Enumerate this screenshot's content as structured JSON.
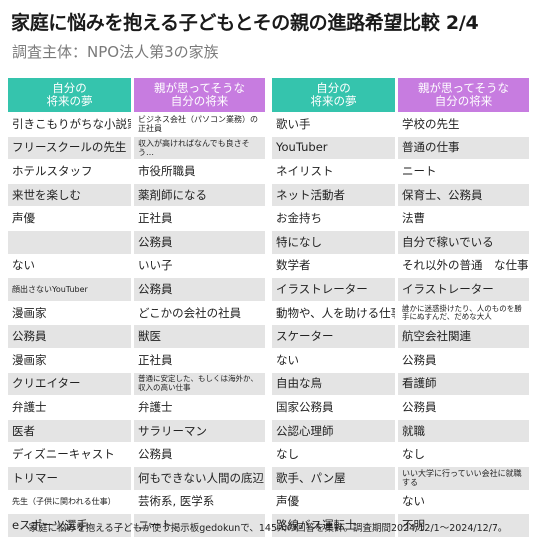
{
  "title": "家庭に悩みを抱える子どもとその親の進路希望比較 2/4",
  "subtitle": "調査主体：NPO法人第3の家族",
  "header": {
    "child_col": "自分の\n将来の夢",
    "parent_col": "親が思ってそうな\n自分の将来"
  },
  "left_rows": [
    [
      "引きこもりがちな小説家",
      "ビジネス会社（パソコン業務）の正社員"
    ],
    [
      "フリースクールの先生",
      "収入が高ければなんでも良さそう…"
    ],
    [
      "ホテルスタッフ",
      "市役所職員"
    ],
    [
      "来世を楽しむ",
      "薬剤師になる"
    ],
    [
      "声優",
      "正社員"
    ],
    [
      "",
      "公務員"
    ],
    [
      "ない",
      "いい子"
    ],
    [
      "顔出さないYouTuber",
      "公務員"
    ],
    [
      "漫画家",
      "どこかの会社の社員"
    ],
    [
      "公務員",
      "獣医"
    ],
    [
      "漫画家",
      "正社員"
    ],
    [
      "クリエイター",
      "普通に安定した、もしくは海外か、収入の高い仕事"
    ],
    [
      "弁護士",
      "弁護士"
    ],
    [
      "医者",
      "サラリーマン"
    ],
    [
      "ディズニーキャスト",
      "公務員"
    ],
    [
      "トリマー",
      "何もできない人間の底辺"
    ],
    [
      "先生（子供に関われる仕事）",
      "芸術系, 医学系"
    ],
    [
      "eスポーツ選手",
      "ニート"
    ]
  ],
  "right_rows": [
    [
      "歌い手",
      "学校の先生"
    ],
    [
      "YouTuber",
      "普通の仕事"
    ],
    [
      "ネイリスト",
      "ニート"
    ],
    [
      "ネット活動者",
      "保育士、公務員"
    ],
    [
      "お金持ち",
      "法曹"
    ],
    [
      "特になし",
      "自分で稼いでいる"
    ],
    [
      "数学者",
      "それ以外の普通　な仕事"
    ],
    [
      "イラストレーター",
      "イラストレーター"
    ],
    [
      "動物や、人を助ける仕事",
      "誰かに迷惑掛けたり、人のものを勝手にぬすんだ、だめな大人"
    ],
    [
      "スケーター",
      "航空会社関連"
    ],
    [
      "ない",
      "公務員"
    ],
    [
      "自由な鳥",
      "看護師"
    ],
    [
      "国家公務員",
      "公務員"
    ],
    [
      "公認心理師",
      "就職"
    ],
    [
      "なし",
      "なし"
    ],
    [
      "歌手、パン屋",
      "いい大学に行っていい会社に就職する"
    ],
    [
      "声優",
      "ない"
    ],
    [
      "路線バス運転士",
      "不明"
    ]
  ],
  "footer": "家庭に悩みを抱える子どもが使う掲示板gedokunで、145人の回答を集計。調査期間2024/12/1～2024/12/7。",
  "colors": {
    "child_header": "#35c4ad",
    "parent_header": "#c77ce0",
    "stripe": "#e4e4e4"
  }
}
